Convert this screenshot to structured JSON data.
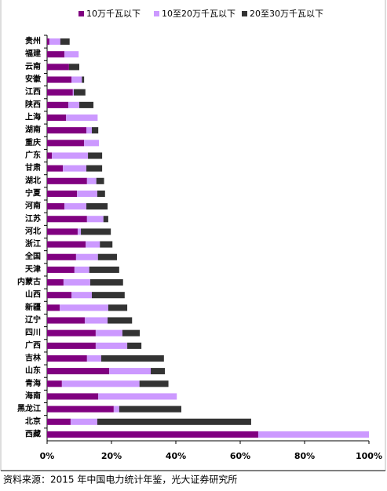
{
  "chart_data": {
    "type": "stacked-hbar",
    "categories": [
      "贵州",
      "福建",
      "云南",
      "安徽",
      "江西",
      "陕西",
      "上海",
      "湖南",
      "重庆",
      "广东",
      "甘肃",
      "湖北",
      "宁夏",
      "河南",
      "江苏",
      "河北",
      "浙江",
      "全国",
      "天津",
      "内蒙古",
      "山西",
      "新疆",
      "辽宁",
      "四川",
      "广西",
      "吉林",
      "山东",
      "青海",
      "海南",
      "黑龙江",
      "北京",
      "西藏"
    ],
    "series": [
      {
        "name": "10万千瓦以下",
        "color": "#800080",
        "values": [
          0.7,
          5.4,
          6.8,
          7.6,
          8.0,
          6.6,
          5.9,
          12.2,
          11.5,
          1.5,
          4.9,
          12.4,
          9.3,
          5.4,
          12.4,
          9.5,
          12.0,
          9.0,
          8.5,
          5.1,
          7.6,
          3.9,
          11.7,
          15.1,
          15.1,
          12.4,
          19.3,
          4.6,
          15.9,
          20.7,
          7.3,
          65.6
        ]
      },
      {
        "name": "10至20万千瓦以下",
        "color": "#cc99ff",
        "values": [
          3.4,
          4.4,
          0,
          3.2,
          0.3,
          3.4,
          9.8,
          1.7,
          4.6,
          11.2,
          7.3,
          2.9,
          6.3,
          6.8,
          5.1,
          1.0,
          4.4,
          6.8,
          4.6,
          8.3,
          6.3,
          15.1,
          7.1,
          8.3,
          9.8,
          4.4,
          12.9,
          24.1,
          24.4,
          1.7,
          8.3,
          34.4
        ]
      },
      {
        "name": "20至30万千瓦以下",
        "color": "#333333",
        "values": [
          2.9,
          0,
          3.2,
          0.7,
          3.6,
          4.4,
          0,
          2.0,
          0,
          4.4,
          4.9,
          2.4,
          2.4,
          6.6,
          1.5,
          9.3,
          3.9,
          5.9,
          9.3,
          10.2,
          10.2,
          5.9,
          7.6,
          5.4,
          4.4,
          19.5,
          4.4,
          9.0,
          0,
          19.3,
          47.8,
          0
        ]
      }
    ],
    "xlim": [
      0,
      100
    ],
    "xticks": [
      {
        "value": 0,
        "label": "0%"
      },
      {
        "value": 20,
        "label": "20%"
      },
      {
        "value": 40,
        "label": "40%"
      },
      {
        "value": 60,
        "label": "60%"
      },
      {
        "value": 80,
        "label": "80%"
      },
      {
        "value": 100,
        "label": "100%"
      }
    ],
    "source": "资料来源：2015 年中国电力统计年鉴，光大证券研究所"
  }
}
